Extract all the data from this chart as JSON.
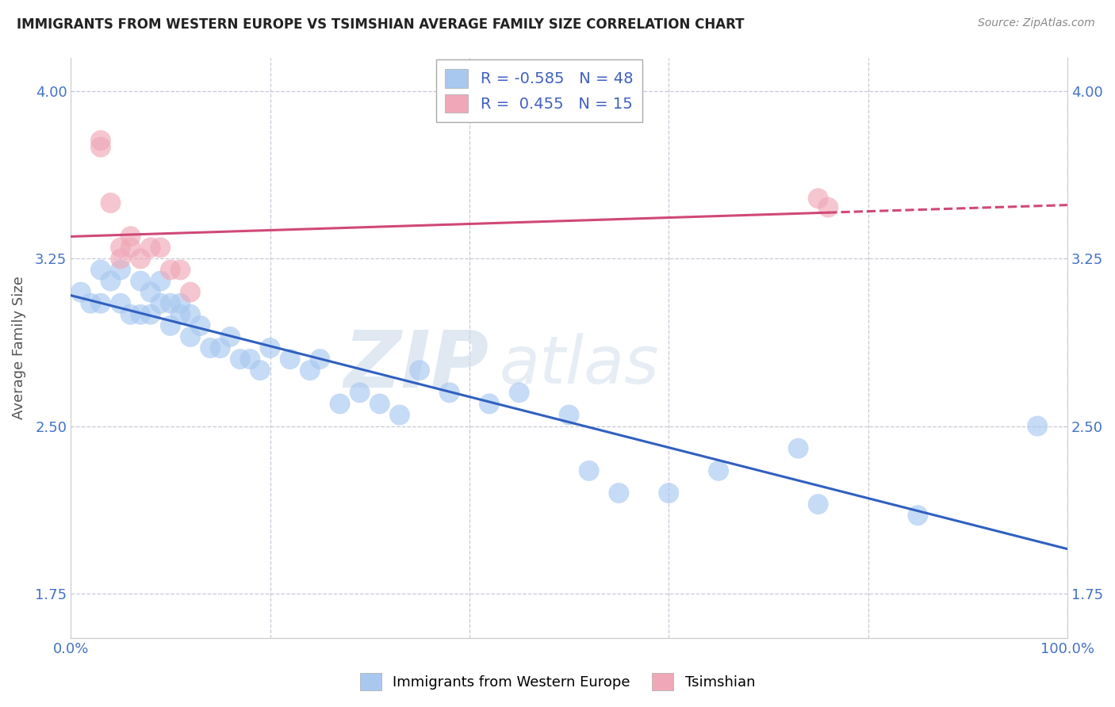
{
  "title": "IMMIGRANTS FROM WESTERN EUROPE VS TSIMSHIAN AVERAGE FAMILY SIZE CORRELATION CHART",
  "source": "Source: ZipAtlas.com",
  "ylabel": "Average Family Size",
  "xlim": [
    0,
    100
  ],
  "ylim": [
    1.55,
    4.15
  ],
  "yticks": [
    1.75,
    2.5,
    3.25,
    4.0
  ],
  "xticks": [
    0,
    20,
    40,
    60,
    80,
    100
  ],
  "xtick_labels": [
    "0.0%",
    "",
    "",
    "",
    "",
    "100.0%"
  ],
  "blue_color": "#a8c8f0",
  "pink_color": "#f0a8b8",
  "blue_line_color": "#3060c0",
  "pink_line_color": "#d04878",
  "legend_blue_label": "Immigrants from Western Europe",
  "legend_pink_label": "Tsimshian",
  "R_blue": -0.585,
  "N_blue": 48,
  "R_pink": 0.455,
  "N_pink": 15,
  "blue_x": [
    1,
    2,
    3,
    3,
    4,
    5,
    5,
    6,
    7,
    7,
    8,
    8,
    9,
    9,
    10,
    10,
    11,
    11,
    12,
    12,
    13,
    14,
    15,
    16,
    17,
    18,
    19,
    20,
    22,
    24,
    25,
    27,
    29,
    31,
    33,
    35,
    38,
    42,
    45,
    50,
    52,
    55,
    60,
    65,
    73,
    75,
    85,
    97
  ],
  "blue_y": [
    3.1,
    3.05,
    3.2,
    3.05,
    3.15,
    3.05,
    3.2,
    3.0,
    3.15,
    3.0,
    3.0,
    3.1,
    3.05,
    3.15,
    2.95,
    3.05,
    3.0,
    3.05,
    2.9,
    3.0,
    2.95,
    2.85,
    2.85,
    2.9,
    2.8,
    2.8,
    2.75,
    2.85,
    2.8,
    2.75,
    2.8,
    2.6,
    2.65,
    2.6,
    2.55,
    2.75,
    2.65,
    2.6,
    2.65,
    2.55,
    2.3,
    2.2,
    2.2,
    2.3,
    2.4,
    2.15,
    2.1,
    2.5
  ],
  "pink_x": [
    3,
    3,
    4,
    5,
    5,
    6,
    6,
    7,
    8,
    9,
    10,
    11,
    12,
    75,
    76
  ],
  "pink_y": [
    3.75,
    3.78,
    3.5,
    3.25,
    3.3,
    3.3,
    3.35,
    3.25,
    3.3,
    3.3,
    3.2,
    3.2,
    3.1,
    3.52,
    3.48
  ],
  "pink_solid_end": 76,
  "watermark_line1": "ZIP",
  "watermark_line2": "atlas",
  "background_color": "#ffffff",
  "grid_color": "#c8c8d8",
  "title_color": "#222222",
  "tick_color": "#4472c4"
}
